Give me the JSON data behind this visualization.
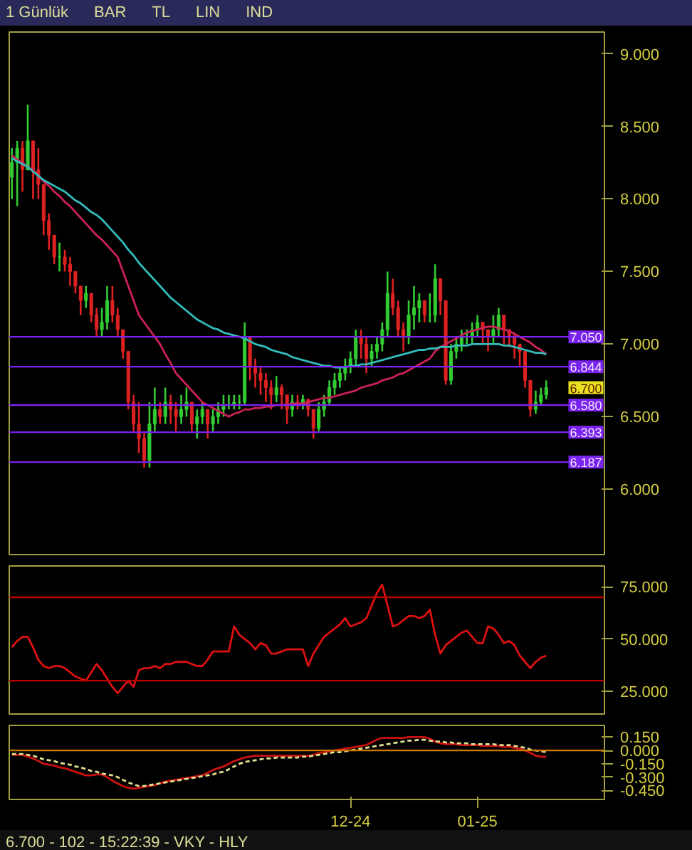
{
  "chart_data": [
    {
      "type": "candlestick",
      "tick_labels": "y",
      "grid": false,
      "categories": [
        null,
        null,
        null,
        null,
        null,
        null,
        null,
        null,
        null,
        null,
        null,
        null,
        null,
        null,
        null,
        null,
        null,
        null,
        null,
        null,
        null,
        null,
        null,
        null,
        null,
        null,
        null,
        null,
        null,
        null,
        null,
        null,
        null,
        null,
        null,
        null,
        null,
        null,
        null,
        null,
        null,
        null,
        null,
        null,
        null,
        null,
        null,
        null,
        null,
        null,
        null,
        null,
        null,
        null,
        null,
        null,
        null,
        null,
        null,
        null,
        null,
        null,
        null,
        null,
        null,
        null,
        null,
        null,
        null,
        null,
        null,
        null,
        null,
        null,
        null,
        null,
        null,
        null,
        null,
        null,
        null,
        null,
        null,
        null,
        null,
        null,
        null,
        null,
        null,
        null,
        null,
        null,
        null,
        null,
        null,
        null,
        null,
        null,
        null,
        null,
        null,
        null
      ],
      "ylim": [
        5.55,
        9.15
      ],
      "yticks": [
        {
          "value": 6,
          "label": "6.000"
        },
        {
          "value": 6.5,
          "label": "6.500"
        },
        {
          "value": 7,
          "label": "7.000"
        },
        {
          "value": 7.5,
          "label": "7.500"
        },
        {
          "value": 8,
          "label": "8.000"
        },
        {
          "value": 8.5,
          "label": "8.500"
        },
        {
          "value": 9,
          "label": "9.000"
        }
      ],
      "ohlc": [
        [
          8.15,
          8.35,
          8.0,
          8.25
        ],
        [
          8.25,
          8.4,
          7.95,
          8.35
        ],
        [
          8.35,
          8.4,
          8.05,
          8.2
        ],
        [
          8.2,
          8.65,
          8.2,
          8.4
        ],
        [
          8.4,
          8.4,
          8.0,
          8.2
        ],
        [
          8.2,
          8.35,
          8.0,
          8.1
        ],
        [
          8.1,
          8.1,
          7.75,
          7.85
        ],
        [
          7.85,
          7.9,
          7.65,
          7.75
        ],
        [
          7.75,
          7.75,
          7.55,
          7.6
        ],
        [
          7.6,
          7.7,
          7.5,
          7.6
        ],
        [
          7.6,
          7.65,
          7.5,
          7.55
        ],
        [
          7.55,
          7.6,
          7.4,
          7.5
        ],
        [
          7.5,
          7.5,
          7.35,
          7.4
        ],
        [
          7.4,
          7.4,
          7.2,
          7.3
        ],
        [
          7.3,
          7.4,
          7.25,
          7.35
        ],
        [
          7.35,
          7.35,
          7.15,
          7.2
        ],
        [
          7.2,
          7.25,
          7.05,
          7.1
        ],
        [
          7.1,
          7.25,
          7.05,
          7.15
        ],
        [
          7.15,
          7.4,
          7.1,
          7.3
        ],
        [
          7.3,
          7.4,
          7.15,
          7.2
        ],
        [
          7.2,
          7.25,
          7.05,
          7.1
        ],
        [
          7.1,
          7.1,
          6.9,
          6.95
        ],
        [
          6.95,
          6.95,
          6.55,
          6.6
        ],
        [
          6.6,
          6.65,
          6.4,
          6.45
        ],
        [
          6.45,
          6.6,
          6.25,
          6.35
        ],
        [
          6.35,
          6.4,
          6.15,
          6.2
        ],
        [
          6.2,
          6.6,
          6.15,
          6.45
        ],
        [
          6.45,
          6.7,
          6.4,
          6.55
        ],
        [
          6.55,
          6.6,
          6.45,
          6.5
        ],
        [
          6.5,
          6.7,
          6.45,
          6.6
        ],
        [
          6.6,
          6.65,
          6.45,
          6.55
        ],
        [
          6.55,
          6.6,
          6.4,
          6.5
        ],
        [
          6.5,
          6.65,
          6.45,
          6.55
        ],
        [
          6.55,
          6.7,
          6.5,
          6.6
        ],
        [
          6.6,
          6.6,
          6.4,
          6.45
        ],
        [
          6.45,
          6.55,
          6.35,
          6.5
        ],
        [
          6.5,
          6.6,
          6.45,
          6.55
        ],
        [
          6.55,
          6.55,
          6.35,
          6.45
        ],
        [
          6.45,
          6.55,
          6.4,
          6.5
        ],
        [
          6.5,
          6.6,
          6.45,
          6.55
        ],
        [
          6.55,
          6.65,
          6.5,
          6.58
        ],
        [
          6.58,
          6.65,
          6.55,
          6.58
        ],
        [
          6.58,
          6.65,
          6.55,
          6.6
        ],
        [
          6.6,
          6.65,
          6.55,
          6.6
        ],
        [
          6.6,
          7.15,
          6.58,
          7.05
        ],
        [
          7.05,
          7.05,
          6.75,
          6.85
        ],
        [
          6.85,
          6.9,
          6.7,
          6.8
        ],
        [
          6.8,
          6.85,
          6.65,
          6.75
        ],
        [
          6.75,
          6.8,
          6.6,
          6.7
        ],
        [
          6.7,
          6.75,
          6.55,
          6.65
        ],
        [
          6.65,
          6.78,
          6.6,
          6.7
        ],
        [
          6.7,
          6.72,
          6.55,
          6.65
        ],
        [
          6.65,
          6.65,
          6.45,
          6.55
        ],
        [
          6.55,
          6.65,
          6.5,
          6.6
        ],
        [
          6.6,
          6.65,
          6.55,
          6.58
        ],
        [
          6.58,
          6.65,
          6.55,
          6.62
        ],
        [
          6.62,
          6.62,
          6.5,
          6.55
        ],
        [
          6.55,
          6.55,
          6.35,
          6.42
        ],
        [
          6.42,
          6.6,
          6.4,
          6.55
        ],
        [
          6.55,
          6.65,
          6.5,
          6.6
        ],
        [
          6.6,
          6.75,
          6.58,
          6.7
        ],
        [
          6.7,
          6.8,
          6.65,
          6.75
        ],
        [
          6.75,
          6.85,
          6.7,
          6.8
        ],
        [
          6.8,
          6.9,
          6.75,
          6.85
        ],
        [
          6.85,
          6.95,
          6.8,
          6.9
        ],
        [
          6.9,
          7.1,
          6.85,
          7.05
        ],
        [
          7.05,
          7.1,
          6.9,
          7.0
        ],
        [
          7.0,
          7.05,
          6.8,
          6.9
        ],
        [
          6.9,
          7.0,
          6.85,
          6.95
        ],
        [
          6.95,
          7.05,
          6.9,
          7.0
        ],
        [
          7.0,
          7.15,
          6.95,
          7.1
        ],
        [
          7.1,
          7.5,
          7.05,
          7.35
        ],
        [
          7.35,
          7.45,
          7.2,
          7.25
        ],
        [
          7.25,
          7.3,
          7.05,
          7.1
        ],
        [
          7.1,
          7.15,
          6.95,
          7.05
        ],
        [
          7.05,
          7.3,
          7.0,
          7.2
        ],
        [
          7.2,
          7.4,
          7.1,
          7.25
        ],
        [
          7.25,
          7.35,
          7.15,
          7.3
        ],
        [
          7.3,
          7.3,
          7.15,
          7.2
        ],
        [
          7.2,
          7.35,
          7.15,
          7.2
        ],
        [
          7.2,
          7.55,
          7.15,
          7.45
        ],
        [
          7.45,
          7.45,
          7.2,
          7.3
        ],
        [
          7.3,
          7.3,
          6.72,
          6.75
        ],
        [
          6.75,
          7.0,
          6.72,
          6.95
        ],
        [
          6.95,
          7.05,
          6.9,
          7.0
        ],
        [
          7.0,
          7.1,
          6.95,
          7.05
        ],
        [
          7.05,
          7.1,
          7.0,
          7.05
        ],
        [
          7.05,
          7.15,
          7.0,
          7.1
        ],
        [
          7.1,
          7.2,
          7.05,
          7.15
        ],
        [
          7.15,
          7.15,
          7.0,
          7.1
        ],
        [
          7.1,
          7.1,
          6.95,
          7.05
        ],
        [
          7.05,
          7.2,
          7.0,
          7.1
        ],
        [
          7.1,
          7.25,
          7.05,
          7.2
        ],
        [
          7.2,
          7.2,
          7.0,
          7.1
        ],
        [
          7.1,
          7.1,
          6.98,
          7.05
        ],
        [
          7.05,
          7.08,
          6.9,
          7.0
        ],
        [
          7.0,
          7.0,
          6.85,
          6.95
        ],
        [
          6.95,
          6.95,
          6.7,
          6.75
        ],
        [
          6.75,
          6.75,
          6.5,
          6.55
        ],
        [
          6.55,
          6.68,
          6.52,
          6.6
        ],
        [
          6.6,
          6.7,
          6.58,
          6.65
        ],
        [
          6.65,
          6.75,
          6.62,
          6.7
        ]
      ],
      "colors": [
        "#33cc33",
        "#33cc33",
        "#dd2222",
        "#33cc33",
        "#dd2222",
        "#dd2222",
        "#dd2222",
        "#dd2222",
        "#dd2222",
        "#33cc33",
        "#dd2222",
        "#dd2222",
        "#dd2222",
        "#dd2222",
        "#33cc33",
        "#dd2222",
        "#dd2222",
        "#33cc33",
        "#33cc33",
        "#dd2222",
        "#dd2222",
        "#dd2222",
        "#dd2222",
        "#dd2222",
        "#dd2222",
        "#dd2222",
        "#33cc33",
        "#33cc33",
        "#dd2222",
        "#33cc33",
        "#dd2222",
        "#dd2222",
        "#33cc33",
        "#33cc33",
        "#dd2222",
        "#33cc33",
        "#33cc33",
        "#dd2222",
        "#33cc33",
        "#33cc33",
        "#33cc33",
        "#33cc33",
        "#33cc33",
        "#33cc33",
        "#33cc33",
        "#dd2222",
        "#dd2222",
        "#dd2222",
        "#dd2222",
        "#dd2222",
        "#33cc33",
        "#dd2222",
        "#dd2222",
        "#33cc33",
        "#dd2222",
        "#33cc33",
        "#dd2222",
        "#dd2222",
        "#33cc33",
        "#33cc33",
        "#33cc33",
        "#33cc33",
        "#33cc33",
        "#33cc33",
        "#33cc33",
        "#33cc33",
        "#dd2222",
        "#dd2222",
        "#33cc33",
        "#33cc33",
        "#33cc33",
        "#33cc33",
        "#dd2222",
        "#dd2222",
        "#dd2222",
        "#33cc33",
        "#33cc33",
        "#33cc33",
        "#dd2222",
        "#33cc33",
        "#33cc33",
        "#dd2222",
        "#dd2222",
        "#33cc33",
        "#33cc33",
        "#33cc33",
        "#33cc33",
        "#33cc33",
        "#33cc33",
        "#dd2222",
        "#dd2222",
        "#33cc33",
        "#33cc33",
        "#dd2222",
        "#dd2222",
        "#dd2222",
        "#dd2222",
        "#dd2222",
        "#dd2222",
        "#33cc33",
        "#33cc33",
        "#33cc33"
      ],
      "series": [
        {
          "type": "line",
          "color": "#cc2255",
          "values": [
            8.3,
            8.27,
            8.25,
            8.22,
            8.2,
            8.16,
            8.12,
            8.09,
            8.05,
            8.02,
            7.98,
            7.95,
            7.91,
            7.87,
            7.83,
            7.79,
            7.75,
            7.72,
            7.68,
            7.64,
            7.6,
            7.5,
            7.4,
            7.3,
            7.2,
            7.15,
            7.1,
            7.05,
            7.0,
            6.93,
            6.87,
            6.8,
            6.76,
            6.72,
            6.68,
            6.64,
            6.6,
            6.58,
            6.56,
            6.54,
            6.52,
            6.5,
            6.52,
            6.53,
            6.55,
            6.55,
            6.56,
            6.56,
            6.57,
            6.57,
            6.58,
            6.58,
            6.58,
            6.59,
            6.59,
            6.59,
            6.6,
            6.61,
            6.62,
            6.63,
            6.63,
            6.64,
            6.65,
            6.66,
            6.67,
            6.68,
            6.7,
            6.71,
            6.72,
            6.73,
            6.75,
            6.76,
            6.77,
            6.79,
            6.8,
            6.82,
            6.84,
            6.86,
            6.88,
            6.9,
            6.95,
            6.98,
            7.0,
            7.02,
            7.04,
            7.06,
            7.08,
            7.09,
            7.1,
            7.11,
            7.12,
            7.12,
            7.11,
            7.1,
            7.09,
            7.07,
            7.05,
            7.03,
            7.01,
            6.98,
            6.96,
            6.93
          ]
        },
        {
          "type": "line",
          "color": "#33bbbb",
          "values": [
            8.28,
            8.26,
            8.24,
            8.22,
            8.19,
            8.16,
            8.13,
            8.11,
            8.09,
            8.07,
            8.05,
            8.02,
            7.99,
            7.97,
            7.94,
            7.91,
            7.89,
            7.86,
            7.82,
            7.78,
            7.74,
            7.7,
            7.65,
            7.61,
            7.56,
            7.52,
            7.48,
            7.44,
            7.4,
            7.36,
            7.32,
            7.29,
            7.26,
            7.23,
            7.2,
            7.17,
            7.15,
            7.13,
            7.11,
            7.1,
            7.08,
            7.07,
            7.06,
            7.05,
            7.04,
            7.02,
            7.0,
            6.99,
            6.98,
            6.96,
            6.95,
            6.94,
            6.93,
            6.91,
            6.9,
            6.89,
            6.88,
            6.87,
            6.86,
            6.85,
            6.85,
            6.84,
            6.84,
            6.84,
            6.85,
            6.85,
            6.86,
            6.86,
            6.87,
            6.88,
            6.89,
            6.9,
            6.91,
            6.92,
            6.93,
            6.94,
            6.95,
            6.96,
            6.96,
            6.97,
            6.97,
            6.98,
            6.98,
            6.98,
            6.99,
            6.99,
            6.99,
            7.0,
            7.0,
            7.0,
            7.0,
            7.0,
            7.0,
            6.99,
            6.99,
            6.98,
            6.97,
            6.96,
            6.95,
            6.94,
            6.94,
            6.93
          ]
        }
      ],
      "ref_lines": [
        {
          "axis": "y",
          "value": 7.05,
          "label": "7.050",
          "color": "#7a22ee"
        },
        {
          "axis": "y",
          "value": 6.844,
          "label": "6.844",
          "color": "#7a22ee"
        },
        {
          "axis": "y",
          "value": 6.58,
          "label": "6.580",
          "color": "#7a22ee"
        },
        {
          "axis": "y",
          "value": 6.393,
          "label": "6.393",
          "color": "#7a22ee"
        },
        {
          "axis": "y",
          "value": 6.187,
          "label": "6.187",
          "color": "#7a22ee"
        }
      ],
      "annotations": [
        "1 Günlük",
        "BAR",
        "TL",
        "LIN",
        "IND",
        "6.700"
      ]
    },
    {
      "type": "line",
      "tick_labels": "y",
      "grid": false,
      "categories": [
        null,
        null,
        null,
        null,
        null,
        null,
        null,
        null,
        null,
        null,
        null,
        null,
        null,
        null,
        null,
        null,
        null,
        null,
        null,
        null,
        null,
        null,
        null,
        null,
        null,
        null,
        null,
        null,
        null,
        null,
        null,
        null,
        null,
        null,
        null,
        null,
        null,
        null,
        null,
        null,
        null,
        null,
        null,
        null,
        null,
        null,
        null,
        null,
        null,
        null,
        null,
        null,
        null,
        null,
        null,
        null,
        null,
        null,
        null,
        null,
        null,
        null,
        null,
        null,
        null,
        null,
        null,
        null,
        null,
        null,
        null,
        null,
        null,
        null,
        null,
        null,
        null,
        null,
        null,
        null,
        null,
        null,
        null,
        null,
        null,
        null,
        null,
        null,
        null,
        null,
        null,
        null,
        null,
        null,
        null,
        null,
        null,
        null,
        null,
        null,
        null,
        null
      ],
      "ylim": [
        14,
        85
      ],
      "yticks": [
        {
          "value": 25,
          "label": "25.000"
        },
        {
          "value": 50,
          "label": "50.000"
        },
        {
          "value": 75,
          "label": "75.000"
        }
      ],
      "series": [
        {
          "color": "#dd1111",
          "values": [
            46,
            49,
            51,
            51,
            46,
            40,
            37,
            36,
            37,
            37,
            36,
            34,
            32,
            31,
            30,
            34,
            38,
            35,
            31,
            27,
            24,
            27,
            30,
            27,
            35,
            36,
            36,
            37,
            36,
            38,
            38,
            39,
            39,
            39,
            38,
            37,
            37,
            40,
            44,
            44,
            44,
            44,
            56,
            52,
            50,
            48,
            45,
            48,
            47,
            43,
            43,
            44,
            45,
            45,
            45,
            45,
            37,
            43,
            47,
            51,
            53,
            55,
            57,
            60,
            56,
            57,
            58,
            60,
            66,
            72,
            76,
            66,
            56,
            57,
            59,
            61,
            61,
            60,
            61,
            64,
            52,
            43,
            47,
            49,
            51,
            53,
            54,
            51,
            48,
            48,
            56,
            55,
            52,
            48,
            49,
            47,
            42,
            39,
            36,
            39,
            41,
            42
          ]
        }
      ],
      "ref_lines": [
        {
          "axis": "y",
          "value": 70,
          "color": "#bb0000"
        },
        {
          "axis": "y",
          "value": 30,
          "color": "#bb0000"
        }
      ]
    },
    {
      "type": "line",
      "grid": false,
      "categories": [
        null,
        null,
        null,
        null,
        null,
        null,
        null,
        null,
        null,
        null,
        null,
        null,
        null,
        null,
        null,
        null,
        null,
        null,
        null,
        null,
        null,
        null,
        null,
        null,
        null,
        null,
        null,
        null,
        null,
        null,
        null,
        null,
        null,
        null,
        null,
        null,
        null,
        null,
        null,
        null,
        null,
        null,
        null,
        null,
        null,
        null,
        null,
        null,
        null,
        null,
        null,
        null,
        null,
        null,
        null,
        null,
        null,
        null,
        null,
        null,
        null,
        null,
        null,
        null,
        "12-24",
        null,
        null,
        null,
        null,
        null,
        null,
        null,
        null,
        null,
        null,
        null,
        null,
        null,
        null,
        null,
        null,
        null,
        null,
        null,
        null,
        null,
        null,
        null,
        "01-25",
        null,
        null,
        null,
        null,
        null,
        null,
        null,
        null,
        null,
        null,
        null,
        null,
        null
      ],
      "ylim": [
        -0.55,
        0.28
      ],
      "yticks": [
        {
          "value": -0.45,
          "label": "-0.450"
        },
        {
          "value": -0.3,
          "label": "-0.300"
        },
        {
          "value": -0.15,
          "label": "-0.150"
        },
        {
          "value": 0,
          "label": "0.000"
        },
        {
          "value": 0.15,
          "label": "0.150"
        }
      ],
      "series": [
        {
          "color": "#cc1111",
          "values": [
            -0.05,
            -0.05,
            -0.05,
            -0.07,
            -0.09,
            -0.12,
            -0.15,
            -0.16,
            -0.17,
            -0.19,
            -0.2,
            -0.22,
            -0.24,
            -0.26,
            -0.28,
            -0.28,
            -0.27,
            -0.27,
            -0.3,
            -0.34,
            -0.37,
            -0.4,
            -0.42,
            -0.43,
            -0.42,
            -0.41,
            -0.4,
            -0.39,
            -0.37,
            -0.35,
            -0.34,
            -0.33,
            -0.32,
            -0.31,
            -0.3,
            -0.29,
            -0.28,
            -0.25,
            -0.22,
            -0.2,
            -0.18,
            -0.15,
            -0.12,
            -0.1,
            -0.08,
            -0.07,
            -0.06,
            -0.06,
            -0.06,
            -0.06,
            -0.06,
            -0.06,
            -0.06,
            -0.06,
            -0.06,
            -0.06,
            -0.06,
            -0.05,
            -0.03,
            -0.02,
            -0.01,
            0.0,
            0.01,
            0.02,
            0.03,
            0.04,
            0.05,
            0.06,
            0.09,
            0.12,
            0.14,
            0.14,
            0.14,
            0.14,
            0.14,
            0.15,
            0.15,
            0.15,
            0.15,
            0.13,
            0.1,
            0.08,
            0.07,
            0.07,
            0.07,
            0.06,
            0.06,
            0.06,
            0.06,
            0.05,
            0.05,
            0.05,
            0.05,
            0.04,
            0.04,
            0.03,
            0.02,
            0.0,
            -0.03,
            -0.06,
            -0.07,
            -0.07
          ]
        },
        {
          "color": "#e0e090",
          "line_style": "dashed",
          "values": [
            -0.04,
            -0.04,
            -0.04,
            -0.05,
            -0.06,
            -0.08,
            -0.1,
            -0.11,
            -0.12,
            -0.14,
            -0.15,
            -0.16,
            -0.18,
            -0.19,
            -0.21,
            -0.23,
            -0.24,
            -0.26,
            -0.27,
            -0.28,
            -0.3,
            -0.33,
            -0.36,
            -0.38,
            -0.4,
            -0.4,
            -0.39,
            -0.38,
            -0.37,
            -0.36,
            -0.35,
            -0.34,
            -0.33,
            -0.32,
            -0.31,
            -0.3,
            -0.29,
            -0.28,
            -0.27,
            -0.25,
            -0.24,
            -0.21,
            -0.18,
            -0.15,
            -0.13,
            -0.12,
            -0.11,
            -0.1,
            -0.09,
            -0.09,
            -0.08,
            -0.08,
            -0.08,
            -0.08,
            -0.08,
            -0.07,
            -0.07,
            -0.06,
            -0.05,
            -0.04,
            -0.03,
            -0.02,
            -0.02,
            -0.01,
            0.0,
            0.01,
            0.02,
            0.03,
            0.04,
            0.05,
            0.06,
            0.07,
            0.08,
            0.09,
            0.1,
            0.11,
            0.11,
            0.12,
            0.12,
            0.11,
            0.1,
            0.1,
            0.09,
            0.09,
            0.08,
            0.08,
            0.08,
            0.07,
            0.07,
            0.07,
            0.07,
            0.07,
            0.06,
            0.06,
            0.06,
            0.05,
            0.04,
            0.03,
            0.01,
            0.0,
            -0.01,
            -0.02
          ]
        }
      ],
      "ref_lines": [
        {
          "axis": "y",
          "value": 0,
          "color": "#cc7a00"
        }
      ],
      "annotations": [
        "6.700 - 102 - 15:22:39 - VKY - HLY"
      ]
    }
  ]
}
